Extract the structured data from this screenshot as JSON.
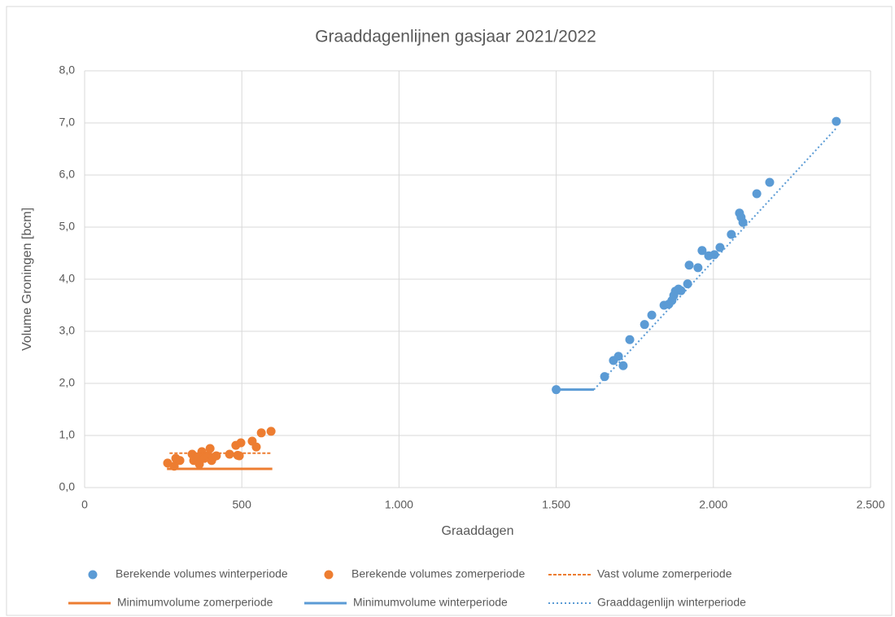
{
  "chart_data": {
    "type": "scatter",
    "title": "Graaddagenlijnen gasjaar 2021/2022",
    "xlabel": "Graaddagen",
    "ylabel": "Volume Groningen [bcm]",
    "xlim": [
      0,
      2500
    ],
    "ylim": [
      0,
      8
    ],
    "xticks": [
      0,
      500,
      {
        "value": 1000,
        "label": "1.000"
      },
      {
        "value": 1500,
        "label": "1.500"
      },
      {
        "value": 2000,
        "label": "2.000"
      },
      {
        "value": 2500,
        "label": "2.500"
      }
    ],
    "yticks": [
      {
        "value": 0,
        "label": "0,0"
      },
      {
        "value": 1,
        "label": "1,0"
      },
      {
        "value": 2,
        "label": "2,0"
      },
      {
        "value": 3,
        "label": "3,0"
      },
      {
        "value": 4,
        "label": "4,0"
      },
      {
        "value": 5,
        "label": "5,0"
      },
      {
        "value": 6,
        "label": "6,0"
      },
      {
        "value": 7,
        "label": "7,0"
      },
      {
        "value": 8,
        "label": "8,0"
      }
    ],
    "grid": true,
    "legend": "bottom",
    "series": [
      {
        "name": "Berekende volumes winterperiode",
        "color": "#5b9bd5",
        "style": "marker",
        "x": [
          1500,
          1654,
          1682,
          1698,
          1713,
          1734,
          1781,
          1804,
          1843,
          1858,
          1868,
          1874,
          1879,
          1889,
          1897,
          1918,
          1923,
          1951,
          1964,
          1985,
          2003,
          2021,
          2057,
          2083,
          2088,
          2094,
          2138,
          2179,
          2391
        ],
        "values": [
          1.88,
          2.13,
          2.44,
          2.52,
          2.34,
          2.84,
          3.13,
          3.31,
          3.5,
          3.52,
          3.59,
          3.69,
          3.77,
          3.81,
          3.78,
          3.91,
          4.27,
          4.22,
          4.55,
          4.45,
          4.47,
          4.61,
          4.86,
          5.27,
          5.19,
          5.09,
          5.64,
          5.86,
          7.03
        ]
      },
      {
        "name": "Berekende volumes zomerperiode",
        "color": "#ed7d31",
        "style": "marker",
        "x": [
          264,
          285,
          290,
          303,
          342,
          347,
          360,
          365,
          373,
          381,
          391,
          399,
          404,
          409,
          419,
          461,
          481,
          487,
          492,
          497,
          533,
          546,
          562,
          593
        ],
        "values": [
          0.47,
          0.41,
          0.56,
          0.52,
          0.64,
          0.52,
          0.59,
          0.45,
          0.69,
          0.56,
          0.61,
          0.75,
          0.52,
          0.58,
          0.61,
          0.64,
          0.81,
          0.62,
          0.61,
          0.86,
          0.89,
          0.78,
          1.05,
          1.08
        ]
      },
      {
        "name": "Vast volume zomerperiode",
        "color": "#ed7d31",
        "style": "dashed",
        "x": [
          270,
          593
        ],
        "values": [
          0.66,
          0.66
        ]
      },
      {
        "name": "Minimumvolume zomerperiode",
        "color": "#ed7d31",
        "style": "solid",
        "x": [
          262,
          597
        ],
        "values": [
          0.36,
          0.36
        ]
      },
      {
        "name": "Minimumvolume winterperiode",
        "color": "#5b9bd5",
        "style": "solid",
        "x": [
          1500,
          1620
        ],
        "values": [
          1.88,
          1.88
        ]
      },
      {
        "name": "Graaddagenlijn winterperiode",
        "color": "#5b9bd5",
        "style": "dotted",
        "x": [
          1620,
          2391
        ],
        "values": [
          1.88,
          6.9
        ]
      }
    ]
  }
}
